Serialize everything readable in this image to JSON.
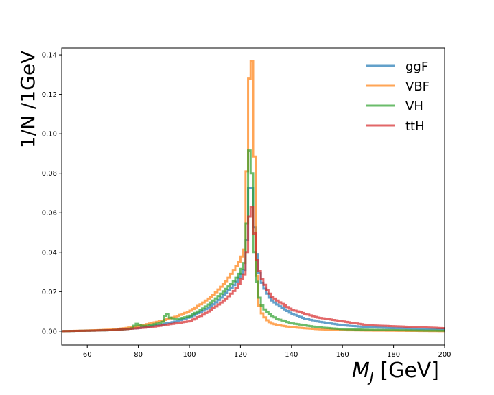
{
  "chart_data": {
    "type": "line",
    "xlabel_main": "M",
    "xlabel_sub": "J",
    "xlabel_unit": " [GeV]",
    "ylabel": "1/N /1GeV",
    "xlim": [
      50,
      200
    ],
    "ylim": [
      -0.007,
      0.1435
    ],
    "xticks": [
      60,
      80,
      100,
      120,
      140,
      160,
      180,
      200
    ],
    "yticks": [
      0.0,
      0.02,
      0.04,
      0.06,
      0.08,
      0.1,
      0.12,
      0.14
    ],
    "ytick_labels": [
      "0.00",
      "0.02",
      "0.04",
      "0.06",
      "0.08",
      "0.10",
      "0.12",
      "0.14"
    ],
    "legend_position": "top-right",
    "grid": false,
    "series": [
      {
        "name": "ggF",
        "color": "#1f77b4",
        "x": [
          50,
          60,
          70,
          75,
          80,
          85,
          90,
          95,
          100,
          105,
          110,
          115,
          118,
          120,
          122,
          123,
          124,
          125,
          126,
          127,
          128,
          130,
          132,
          135,
          140,
          145,
          150,
          160,
          170,
          180,
          190,
          200
        ],
        "y": [
          0.0,
          0.0002,
          0.0005,
          0.001,
          0.0015,
          0.0025,
          0.0035,
          0.005,
          0.007,
          0.01,
          0.014,
          0.02,
          0.024,
          0.028,
          0.032,
          0.06,
          0.085,
          0.06,
          0.045,
          0.033,
          0.026,
          0.02,
          0.016,
          0.013,
          0.009,
          0.0065,
          0.005,
          0.003,
          0.002,
          0.0015,
          0.0012,
          0.001
        ]
      },
      {
        "name": "VBF",
        "color": "#ff7f0e",
        "x": [
          50,
          60,
          70,
          75,
          80,
          85,
          90,
          95,
          100,
          105,
          110,
          115,
          118,
          120,
          122,
          123,
          124,
          125,
          126,
          127,
          128,
          130,
          132,
          135,
          140,
          145,
          150,
          160,
          170,
          180,
          190,
          200
        ],
        "y": [
          0.0,
          0.0003,
          0.0008,
          0.0015,
          0.0025,
          0.004,
          0.0055,
          0.0075,
          0.01,
          0.014,
          0.019,
          0.026,
          0.032,
          0.036,
          0.043,
          0.119,
          0.137,
          0.137,
          0.04,
          0.016,
          0.01,
          0.006,
          0.004,
          0.003,
          0.002,
          0.0015,
          0.001,
          0.0005,
          0.0003,
          0.0002,
          0.0001,
          0.0
        ]
      },
      {
        "name": "VH",
        "color": "#2ca02c",
        "x": [
          50,
          60,
          70,
          75,
          78,
          79,
          80,
          82,
          85,
          88,
          90,
          91,
          92,
          95,
          100,
          105,
          110,
          115,
          118,
          120,
          122,
          123,
          124,
          125,
          126,
          127,
          128,
          130,
          132,
          135,
          140,
          145,
          150,
          160,
          170,
          180,
          190,
          200
        ],
        "y": [
          0.0,
          0.0002,
          0.0005,
          0.001,
          0.0015,
          0.004,
          0.0035,
          0.0025,
          0.003,
          0.004,
          0.005,
          0.0105,
          0.007,
          0.006,
          0.0075,
          0.011,
          0.016,
          0.022,
          0.026,
          0.03,
          0.036,
          0.073,
          0.11,
          0.05,
          0.03,
          0.02,
          0.014,
          0.01,
          0.008,
          0.006,
          0.004,
          0.003,
          0.002,
          0.001,
          0.0007,
          0.0005,
          0.0003,
          0.0002
        ]
      },
      {
        "name": "ttH",
        "color": "#d62728",
        "x": [
          50,
          60,
          70,
          75,
          80,
          85,
          90,
          95,
          100,
          105,
          110,
          115,
          118,
          120,
          122,
          123,
          124,
          125,
          126,
          127,
          128,
          130,
          132,
          135,
          140,
          145,
          150,
          160,
          170,
          180,
          190,
          200
        ],
        "y": [
          0.0,
          0.0002,
          0.0005,
          0.001,
          0.0015,
          0.002,
          0.003,
          0.004,
          0.005,
          0.008,
          0.012,
          0.017,
          0.021,
          0.025,
          0.03,
          0.05,
          0.066,
          0.06,
          0.039,
          0.033,
          0.028,
          0.022,
          0.018,
          0.015,
          0.011,
          0.009,
          0.007,
          0.005,
          0.003,
          0.0025,
          0.002,
          0.0015
        ]
      }
    ]
  }
}
